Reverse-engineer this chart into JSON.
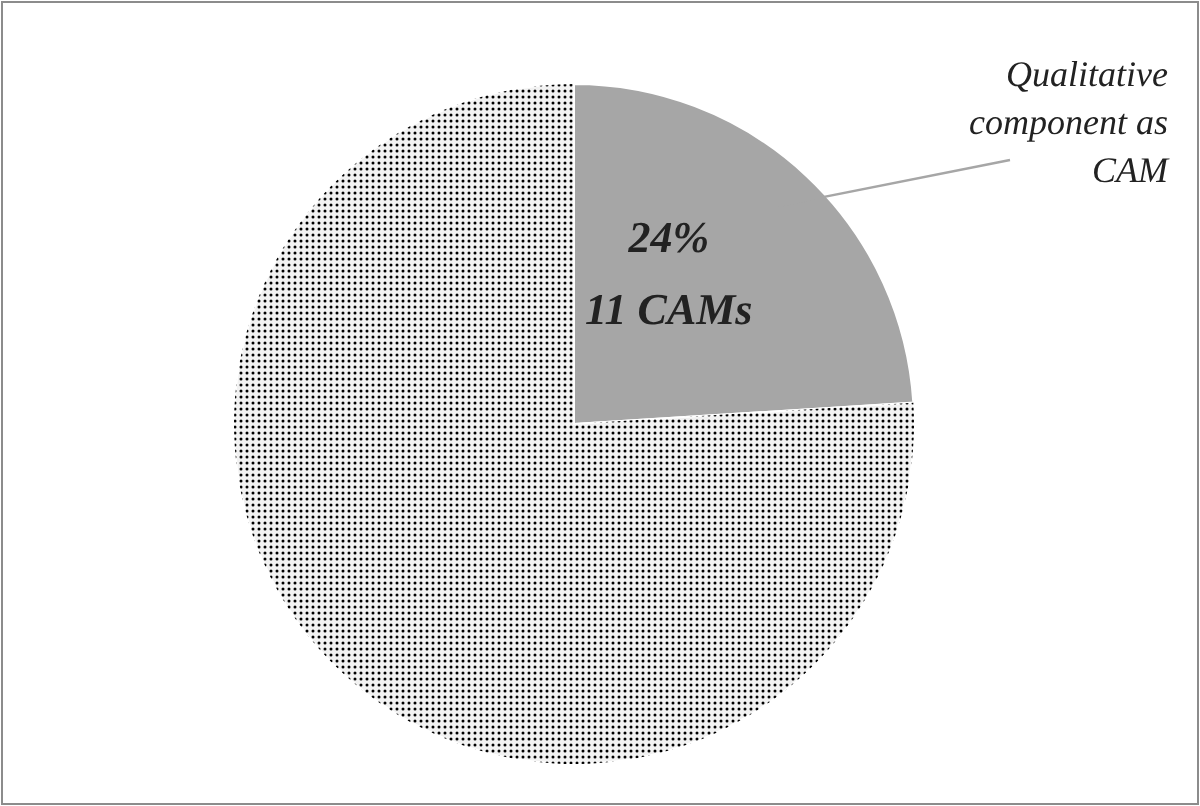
{
  "chart_data": {
    "type": "pie",
    "categories": [
      "Qualitative component as CAM",
      null
    ],
    "values": [
      24,
      76
    ],
    "colors": [
      "#a6a6a6",
      "#f2f2f2"
    ],
    "value_labels": [
      "24%\n11 CAMs",
      null
    ]
  }
}
